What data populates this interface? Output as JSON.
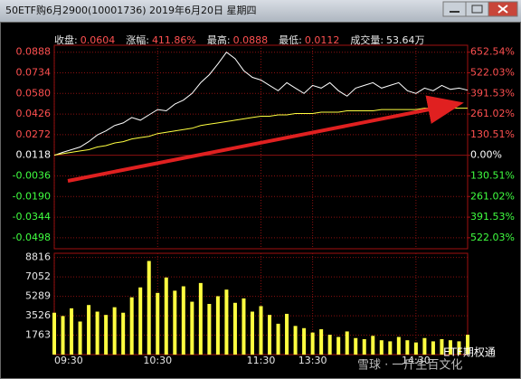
{
  "window_title": "50ETF购6月2900(10001736)  2019年6月20日  星期四",
  "stats": [
    {
      "label": "收盘:",
      "value": "0.0604"
    },
    {
      "label": "涨幅:",
      "value": "411.86%"
    },
    {
      "label": "最高:",
      "value": "0.0888"
    },
    {
      "label": "最低:",
      "value": "0.0112"
    },
    {
      "label": "成交量:",
      "value": "53.64万"
    }
  ],
  "annotations": [
    "雪球 · 一斤生百文化",
    "ETF期权通"
  ],
  "chart_data": [
    {
      "type": "line",
      "x": [
        0,
        5,
        10,
        15,
        20,
        25,
        30,
        35,
        40,
        45,
        50,
        55,
        60,
        65,
        70,
        75,
        80,
        85,
        90,
        95,
        100,
        105,
        110,
        115,
        120,
        125,
        130,
        135,
        140,
        145,
        150,
        155,
        160,
        165,
        170,
        175,
        180,
        185,
        190,
        195,
        200,
        205,
        210,
        215,
        220,
        225,
        230,
        235,
        240
      ],
      "xlim": [
        0,
        240
      ],
      "ylim": [
        -0.058,
        0.094
      ],
      "yticks": [
        0.0888,
        0.0734,
        {
          "value": 0.058,
          "label": "0.0580"
        },
        0.0426,
        0.0272,
        0.0118,
        -0.0036,
        {
          "value": -0.019,
          "label": "-0.0190"
        },
        -0.0344,
        -0.0498
      ],
      "y2lim": [
        -591.5,
        696.6
      ],
      "y2ticks": [
        {
          "value": 652.54,
          "label": "652.54%"
        },
        {
          "value": 522.03,
          "label": "522.03%"
        },
        {
          "value": 391.53,
          "label": "391.53%"
        },
        {
          "value": 261.02,
          "label": "261.02%"
        },
        {
          "value": 130.51,
          "label": "130.51%"
        },
        {
          "value": 0,
          "label": "0.00%"
        },
        {
          "value": -130.51,
          "label": "130.51%"
        },
        {
          "value": -261.02,
          "label": "261.02%"
        },
        {
          "value": -391.53,
          "label": "391.53%"
        },
        {
          "value": -522.03,
          "label": "522.03%"
        }
      ],
      "grid": true,
      "series": [
        {
          "color": "#ffffff",
          "values": [
            0.0118,
            0.014,
            0.016,
            0.018,
            0.022,
            0.027,
            0.03,
            0.034,
            0.036,
            0.04,
            0.038,
            0.042,
            0.046,
            0.045,
            0.05,
            0.053,
            0.058,
            0.066,
            0.072,
            0.08,
            0.0888,
            0.084,
            0.075,
            0.07,
            0.068,
            0.064,
            0.06,
            0.066,
            0.062,
            0.058,
            0.064,
            0.062,
            0.066,
            0.06,
            0.056,
            0.062,
            0.064,
            0.066,
            0.062,
            0.064,
            0.066,
            0.06,
            0.058,
            0.062,
            0.06,
            0.064,
            0.061,
            0.062,
            0.0604
          ]
        },
        {
          "color": "#ffff40",
          "values": [
            0.012,
            0.013,
            0.014,
            0.015,
            0.016,
            0.018,
            0.019,
            0.021,
            0.022,
            0.024,
            0.025,
            0.026,
            0.028,
            0.029,
            0.03,
            0.031,
            0.032,
            0.034,
            0.035,
            0.036,
            0.037,
            0.038,
            0.039,
            0.04,
            0.041,
            0.041,
            0.042,
            0.042,
            0.043,
            0.043,
            0.043,
            0.044,
            0.044,
            0.044,
            0.045,
            0.045,
            0.045,
            0.045,
            0.046,
            0.046,
            0.046,
            0.046,
            0.046,
            0.047,
            0.047,
            0.047,
            0.047,
            0.047,
            0.047
          ]
        }
      ]
    },
    {
      "type": "bar",
      "x": [
        0,
        5,
        10,
        15,
        20,
        25,
        30,
        35,
        40,
        45,
        50,
        55,
        60,
        65,
        70,
        75,
        80,
        85,
        90,
        95,
        100,
        105,
        110,
        115,
        120,
        125,
        130,
        135,
        140,
        145,
        150,
        155,
        160,
        165,
        170,
        175,
        180,
        185,
        190,
        195,
        200,
        205,
        210,
        215,
        220,
        225,
        230,
        235,
        240
      ],
      "xlim": [
        0,
        240
      ],
      "xticks": [
        {
          "value": 0,
          "label": "09:30"
        },
        {
          "value": 60,
          "label": "10:30"
        },
        {
          "value": 120,
          "label": "11:30"
        },
        {
          "value": 150,
          "label": "13:30"
        },
        {
          "value": 210,
          "label": "14:30"
        }
      ],
      "ylim": [
        0,
        9200
      ],
      "yticks": [
        8816,
        7052,
        5289,
        3526,
        1763
      ],
      "color": "#ffff40",
      "values": [
        3800,
        3500,
        4200,
        3000,
        4500,
        3900,
        3600,
        4300,
        3800,
        5200,
        6100,
        8500,
        5600,
        7000,
        5800,
        6200,
        4800,
        6500,
        4600,
        5300,
        5900,
        4700,
        5100,
        3900,
        4400,
        3600,
        2800,
        3700,
        2600,
        2400,
        2000,
        2300,
        1800,
        1600,
        2100,
        1500,
        1400,
        1700,
        1300,
        1200,
        1600,
        1300,
        1100,
        1500,
        1200,
        1400,
        1300,
        1200,
        1800
      ]
    }
  ]
}
